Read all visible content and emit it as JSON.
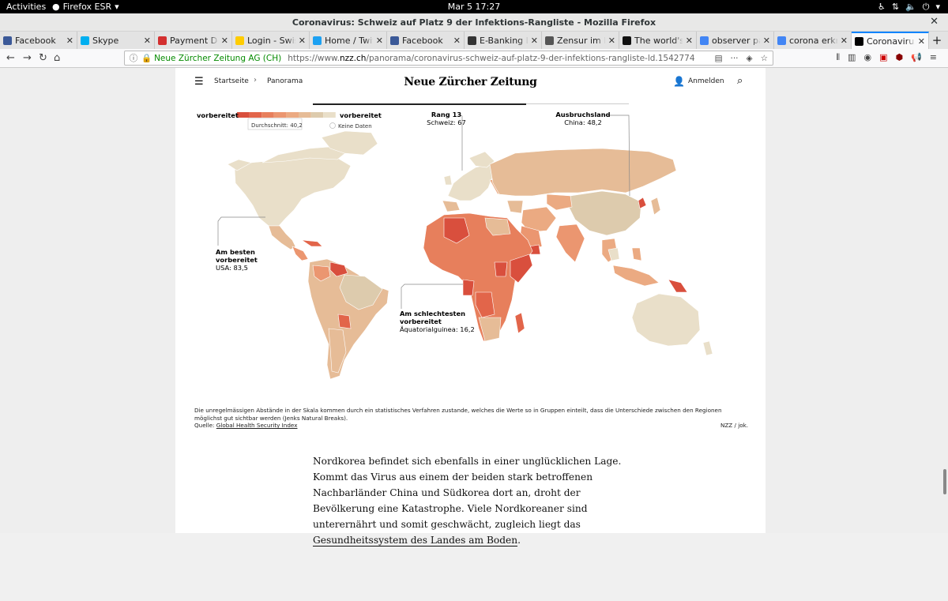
{
  "desktop": {
    "activities": "Activities",
    "app_name": "Firefox ESR",
    "clock": "Mar 5  17:27"
  },
  "window": {
    "title": "Coronavirus: Schweiz auf Platz 9 der Infektions-Rangliste - Mozilla Firefox"
  },
  "tabs": [
    {
      "label": "Facebook",
      "icon": "facebook-icon",
      "color": "#3b5998"
    },
    {
      "label": "Skype",
      "icon": "skype-icon",
      "color": "#00aff0"
    },
    {
      "label": "Payment Decli",
      "icon": "payment-icon",
      "color": "#d32f2f"
    },
    {
      "label": "Login - Swiss P",
      "icon": "swiss-post-icon",
      "color": "#ffcc00"
    },
    {
      "label": "Home / Twitter",
      "icon": "twitter-icon",
      "color": "#1da1f2"
    },
    {
      "label": "Facebook",
      "icon": "facebook-icon",
      "color": "#3b5998"
    },
    {
      "label": "E-Banking Log",
      "icon": "ebanking-icon",
      "color": "#333333"
    },
    {
      "label": "Zensur im Inte",
      "icon": "wikipedia-icon",
      "color": "#555555"
    },
    {
      "label": "The world's lea",
      "icon": "github-icon",
      "color": "#111111"
    },
    {
      "label": "observer patte",
      "icon": "google-icon",
      "color": "#4285f4"
    },
    {
      "label": "corona erkrank",
      "icon": "google-icon",
      "color": "#4285f4"
    },
    {
      "label": "Coronavirus: S",
      "icon": "nzz-icon",
      "color": "#000000",
      "active": true
    }
  ],
  "navbar": {
    "org": "Neue Zürcher Zeitung AG (CH)",
    "url_prefix": "https://www.",
    "url_domain": "nzz.ch",
    "url_path": "/panorama/coronavirus-schweiz-auf-platz-9-der-infektions-rangliste-ld.1542774",
    "more": "···"
  },
  "site": {
    "start": "Startseite",
    "section": "Panorama",
    "logo": "Neue Zürcher Zeitung",
    "login": "Anmelden"
  },
  "legend": {
    "left_label": "vorbereitet",
    "right_label": "vorbereitet",
    "average": "Durchschnitt: 40,2",
    "no_data": "Keine Daten",
    "colors": [
      "#d94f3d",
      "#e2654a",
      "#e77f5c",
      "#eb9670",
      "#ebaa82",
      "#e6bc97",
      "#ddcbad",
      "#e9dfc9"
    ]
  },
  "annotations": {
    "swiss_title": "Rang 13",
    "swiss_value": "Schweiz: 67",
    "china_title": "Ausbruchsland",
    "china_value": "China: 48,2",
    "usa_title_1": "Am besten",
    "usa_title_2": "vorbereitet",
    "usa_value": "USA: 83,5",
    "eqg_title_1": "Am schlechtesten",
    "eqg_title_2": "vorbereitet",
    "eqg_value": "Äquatorialguinea: 16,2"
  },
  "footnote": "Die unregelmässigen Abstände in der Skala kommen durch ein statistisches Verfahren zustande, welches die Werte so in Gruppen einteilt, dass die Unterschiede zwischen den Regionen möglichst gut sichtbar werden (Jenks Natural Breaks).",
  "source_label": "Quelle:",
  "source_link": "Global Health Security Index",
  "credit": "NZZ / jok.",
  "article": {
    "p1": "Nordkorea befindet sich ebenfalls in einer unglücklichen Lage. Kommt das Virus aus einem der beiden stark betroffenen Nachbarländer China und Südkorea dort an, droht der Bevölkerung eine Katastrophe. Viele Nordkoreaner sind unterernährt und somit geschwächt, zugleich liegt das",
    "p1_link": "Gesundheitssystem des Landes am Boden",
    "p1_end": "."
  }
}
